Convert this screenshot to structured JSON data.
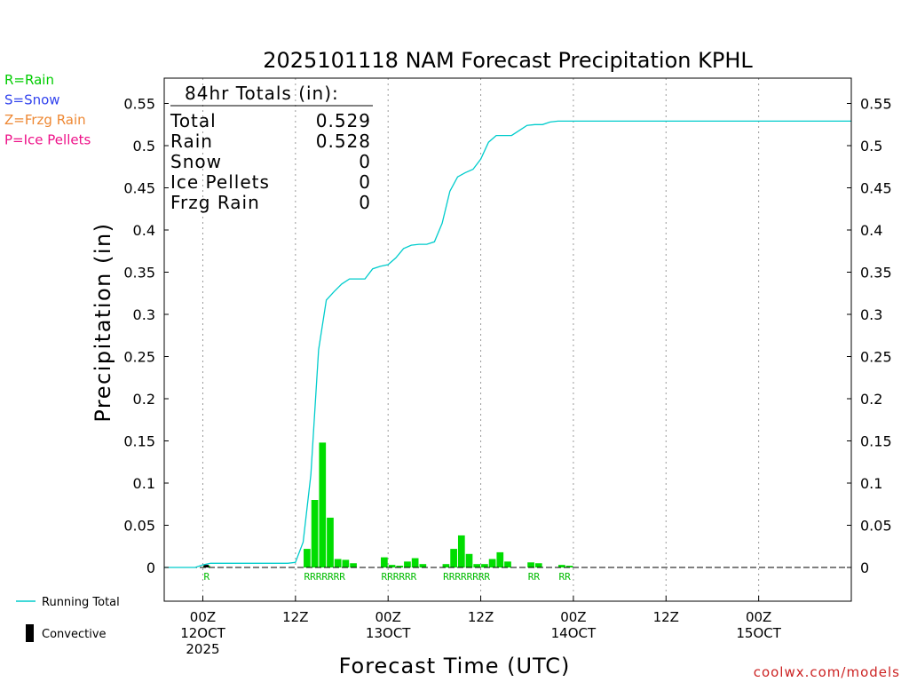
{
  "chart_data": {
    "type": "bar",
    "title": "2025101118 NAM Forecast Precipitation KPHL",
    "xlabel": "Forecast Time (UTC)",
    "ylabel": "Precipitation (in)",
    "ylim": [
      -0.04,
      0.58
    ],
    "xlim_hours": [
      -5,
      84
    ],
    "y_ticks": [
      0,
      0.05,
      0.1,
      0.15,
      0.2,
      0.25,
      0.3,
      0.35,
      0.4,
      0.45,
      0.5,
      0.55
    ],
    "y_tick_labels": [
      "0",
      "0.05",
      "0.1",
      "0.15",
      "0.2",
      "0.25",
      "0.3",
      "0.35",
      "0.4",
      "0.45",
      "0.5",
      "0.55"
    ],
    "x_ticks": [
      {
        "hour": 0,
        "lines": [
          "00Z",
          "12OCT",
          "2025"
        ]
      },
      {
        "hour": 12,
        "lines": [
          "12Z"
        ]
      },
      {
        "hour": 24,
        "lines": [
          "00Z",
          "13OCT"
        ]
      },
      {
        "hour": 36,
        "lines": [
          "12Z"
        ]
      },
      {
        "hour": 48,
        "lines": [
          "00Z",
          "14OCT"
        ]
      },
      {
        "hour": 60,
        "lines": [
          "12Z"
        ]
      },
      {
        "hour": 72,
        "lines": [
          "00Z",
          "15OCT"
        ]
      }
    ],
    "gridlines_at_hours": [
      0,
      12,
      24,
      36,
      48,
      60,
      72
    ],
    "totals_box": {
      "header": "84hr Totals (in):",
      "rows": [
        {
          "label": "Total",
          "value": "0.529"
        },
        {
          "label": "Rain",
          "value": "0.528"
        },
        {
          "label": "Snow",
          "value": "0"
        },
        {
          "label": "Ice Pellets",
          "value": "0"
        },
        {
          "label": "Frzg Rain",
          "value": "0"
        }
      ]
    },
    "ptype_legend": [
      {
        "text": "R=Rain",
        "color": "#00cc00"
      },
      {
        "text": "S=Snow",
        "color": "#3344ee"
      },
      {
        "text": "Z=Frzg Rain",
        "color": "#ee8833"
      },
      {
        "text": "P=Ice Pellets",
        "color": "#ee1188"
      }
    ],
    "series_legend": [
      {
        "text": "Running Total",
        "color": "#00cccc"
      },
      {
        "text": "Convective",
        "color": "#000000"
      }
    ],
    "bar_color": "#00dd00",
    "line_color": "#00cccc",
    "bars": [
      {
        "hour": 0,
        "value": 0.002
      },
      {
        "hour": 13,
        "value": 0.022
      },
      {
        "hour": 14,
        "value": 0.08
      },
      {
        "hour": 15,
        "value": 0.148
      },
      {
        "hour": 16,
        "value": 0.059
      },
      {
        "hour": 17,
        "value": 0.01
      },
      {
        "hour": 18,
        "value": 0.009
      },
      {
        "hour": 19,
        "value": 0.005
      },
      {
        "hour": 23,
        "value": 0.012
      },
      {
        "hour": 24,
        "value": 0.003
      },
      {
        "hour": 25,
        "value": 0.002
      },
      {
        "hour": 26,
        "value": 0.007
      },
      {
        "hour": 27,
        "value": 0.011
      },
      {
        "hour": 28,
        "value": 0.004
      },
      {
        "hour": 31,
        "value": 0.004
      },
      {
        "hour": 32,
        "value": 0.022
      },
      {
        "hour": 33,
        "value": 0.038
      },
      {
        "hour": 34,
        "value": 0.016
      },
      {
        "hour": 35,
        "value": 0.004
      },
      {
        "hour": 36,
        "value": 0.004
      },
      {
        "hour": 37,
        "value": 0.01
      },
      {
        "hour": 38,
        "value": 0.018
      },
      {
        "hour": 39,
        "value": 0.007
      },
      {
        "hour": 42,
        "value": 0.006
      },
      {
        "hour": 43,
        "value": 0.005
      },
      {
        "hour": 46,
        "value": 0.003
      },
      {
        "hour": 47,
        "value": 0.002
      }
    ],
    "convective_bars": [
      {
        "hour": 0,
        "value": 0.002
      }
    ],
    "running_total": {
      "x": [
        -5,
        -1,
        0,
        1,
        2,
        4,
        6,
        8,
        10,
        11,
        12,
        13,
        14,
        15,
        16,
        17,
        18,
        19,
        20,
        21,
        22,
        23,
        24,
        25,
        26,
        27,
        28,
        29,
        30,
        31,
        32,
        33,
        34,
        35,
        36,
        37,
        38,
        39,
        40,
        41,
        42,
        43,
        44,
        45,
        46,
        47,
        48,
        50,
        84
      ],
      "y": [
        0,
        0,
        0.003,
        0.005,
        0.005,
        0.005,
        0.005,
        0.005,
        0.005,
        0.005,
        0.006,
        0.03,
        0.11,
        0.258,
        0.317,
        0.327,
        0.336,
        0.342,
        0.342,
        0.342,
        0.354,
        0.357,
        0.359,
        0.367,
        0.378,
        0.382,
        0.383,
        0.383,
        0.386,
        0.408,
        0.446,
        0.463,
        0.468,
        0.472,
        0.484,
        0.504,
        0.512,
        0.512,
        0.512,
        0.518,
        0.524,
        0.525,
        0.525,
        0.528,
        0.529,
        0.529,
        0.529,
        0.529,
        0.529
      ]
    },
    "ptype_row": [
      {
        "start_hour": 0,
        "text": "R"
      },
      {
        "start_hour": 13,
        "text": "RRRRRRR"
      },
      {
        "start_hour": 23,
        "text": "RRRRRR"
      },
      {
        "start_hour": 31,
        "text": "RRRRRRRR"
      },
      {
        "start_hour": 42,
        "text": "RR"
      },
      {
        "start_hour": 46,
        "text": "RR"
      }
    ]
  },
  "footer": {
    "credit": "coolwx.com/models"
  }
}
